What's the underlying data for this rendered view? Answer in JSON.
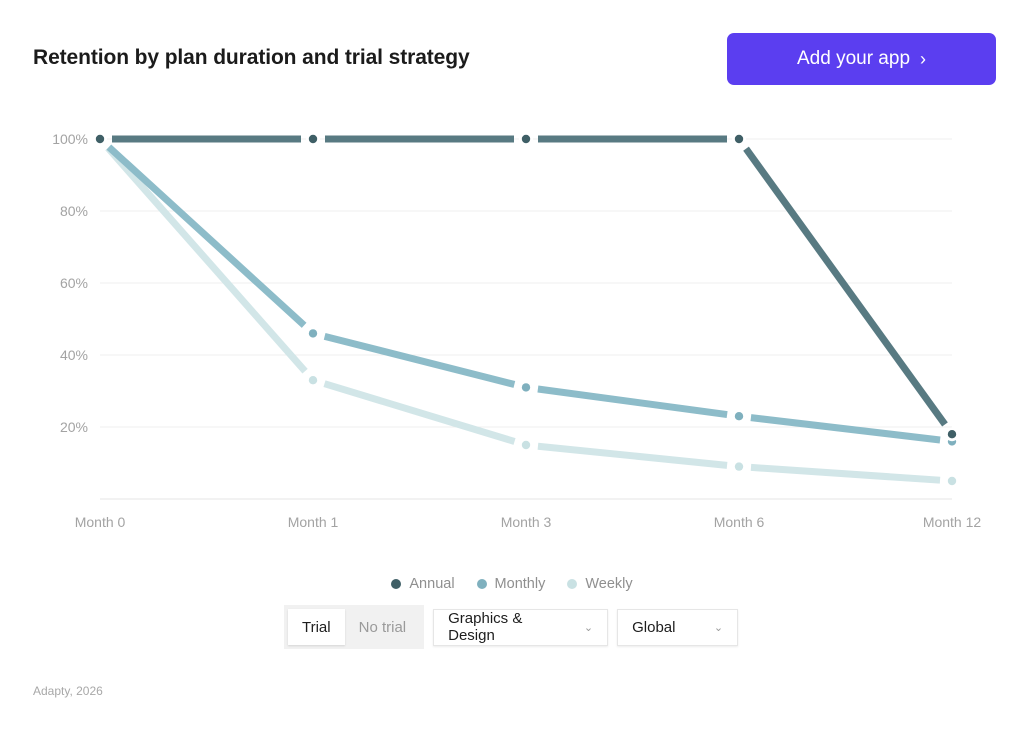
{
  "header": {
    "title": "Retention by plan duration and trial strategy",
    "cta_label": "Add your app",
    "cta_icon": "chevron-right-icon",
    "cta_color": "#5b3ef0"
  },
  "chart_data": {
    "type": "line",
    "title": "Retention by plan duration and trial strategy",
    "xlabel": "",
    "ylabel": "",
    "categories": [
      "Month 0",
      "Month 1",
      "Month 3",
      "Month 6",
      "Month 12"
    ],
    "y_ticks": [
      "20%",
      "40%",
      "60%",
      "80%",
      "100%"
    ],
    "ylim": [
      0,
      100
    ],
    "grid": true,
    "legend_position": "bottom",
    "series": [
      {
        "name": "Annual",
        "color": "#587a82",
        "values": [
          100,
          100,
          100,
          100,
          18
        ]
      },
      {
        "name": "Monthly",
        "color": "#8dbcc9",
        "values": [
          100,
          46,
          31,
          23,
          16
        ]
      },
      {
        "name": "Weekly",
        "color": "#d2e6e8",
        "values": [
          100,
          33,
          15,
          9,
          5
        ]
      }
    ]
  },
  "legend": [
    {
      "label": "Annual",
      "color": "#3f5f66"
    },
    {
      "label": "Monthly",
      "color": "#7fb0be"
    },
    {
      "label": "Weekly",
      "color": "#c9e1e3"
    }
  ],
  "controls": {
    "trial_toggle": {
      "options": [
        "Trial",
        "No trial"
      ],
      "selected": "Trial"
    },
    "category_select": {
      "value": "Graphics & Design"
    },
    "region_select": {
      "value": "Global"
    }
  },
  "footer": {
    "source": "Adapty, 2026"
  }
}
